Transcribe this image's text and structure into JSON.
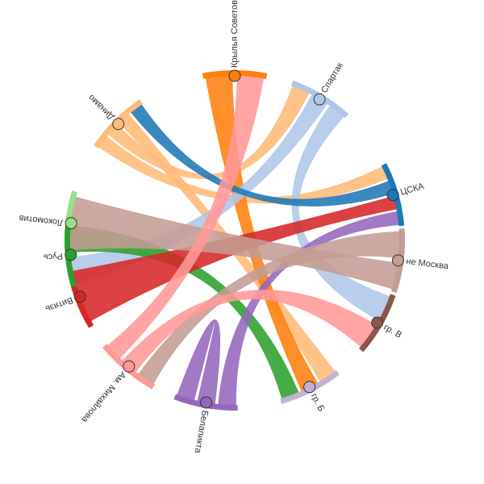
{
  "chart_data": {
    "type": "chord",
    "title": "",
    "nodes": [
      {
        "name": "ЦСКА",
        "color": "#1f77b4"
      },
      {
        "name": "не Москва",
        "color": "#c49c94"
      },
      {
        "name": "гр. В",
        "color": "#8c564b"
      },
      {
        "name": "гр. Б",
        "color": "#c5b0d5"
      },
      {
        "name": "Белапикта",
        "color": "#9467bd"
      },
      {
        "name": "Ам. Михайлова",
        "color": "#ff9896"
      },
      {
        "name": "Витязь",
        "color": "#d62728"
      },
      {
        "name": "Локомотив",
        "color": "#98df8a"
      },
      {
        "name": "Русь",
        "color": "#2ca02c"
      },
      {
        "name": "Динамо",
        "color": "#ffbb78"
      },
      {
        "name": "Крылья Советов",
        "color": "#ff7f0e"
      },
      {
        "name": "Спартак",
        "color": "#aec7e8"
      }
    ],
    "links": [
      {
        "source": "Динамо",
        "target": "ЦСКА"
      },
      {
        "source": "Динамо",
        "target": "Спартак"
      },
      {
        "source": "Динамо",
        "target": "гр. Б"
      },
      {
        "source": "Крылья Советов",
        "target": "гр. Б"
      },
      {
        "source": "Спартак",
        "target": "Русь"
      },
      {
        "source": "Спартак",
        "target": "гр. В"
      },
      {
        "source": "ЦСКА",
        "target": "Динамо"
      },
      {
        "source": "Русь",
        "target": "гр. Б"
      },
      {
        "source": "Витязь",
        "target": "ЦСКА"
      },
      {
        "source": "Белапикта",
        "target": "ЦСКА"
      },
      {
        "source": "не Москва",
        "target": "Ам. Михайлова"
      },
      {
        "source": "не Москва",
        "target": "Локомотив"
      },
      {
        "source": "Ам. Михайлова",
        "target": "гр. В"
      },
      {
        "source": "Ам. Михайлова",
        "target": "Крылья Советов"
      },
      {
        "source": "Белапикта",
        "target": "Белапикта"
      }
    ]
  }
}
